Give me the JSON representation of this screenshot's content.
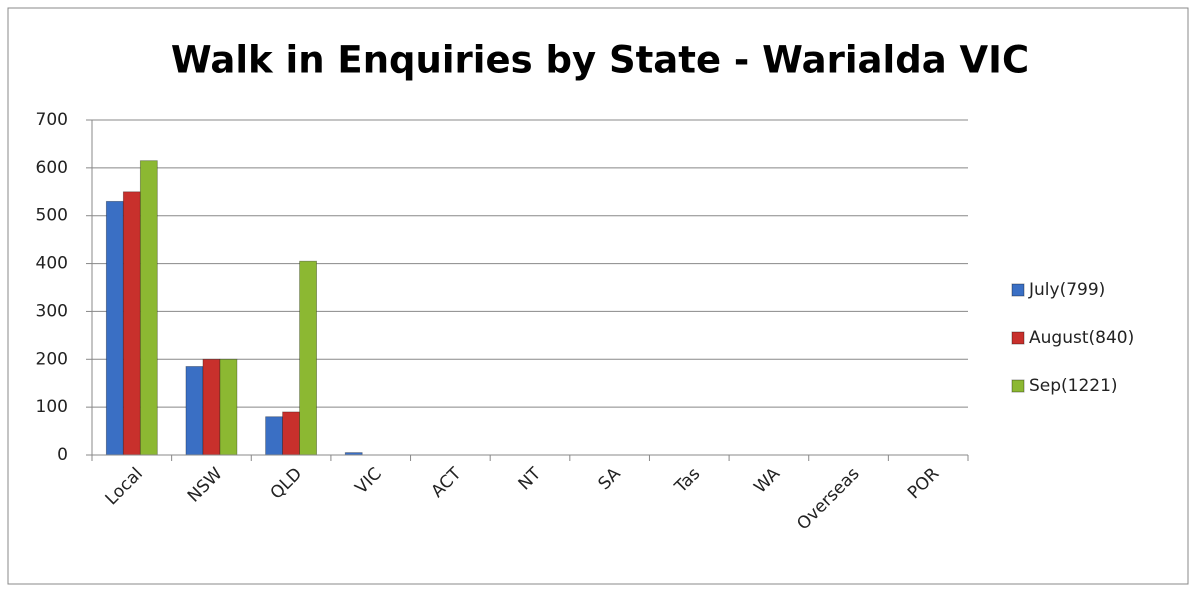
{
  "chart_data": {
    "type": "bar",
    "title": "Walk in Enquiries by State - Warialda VIC",
    "categories": [
      "Local",
      "NSW",
      "QLD",
      "VIC",
      "ACT",
      "NT",
      "SA",
      "Tas",
      "WA",
      "Overseas",
      "POR"
    ],
    "series": [
      {
        "name": "July(799)",
        "color": "#3a6fc4",
        "values": [
          530,
          185,
          80,
          5,
          0,
          0,
          0,
          0,
          0,
          0,
          0
        ]
      },
      {
        "name": "August(840)",
        "color": "#c8302c",
        "values": [
          550,
          200,
          90,
          0,
          0,
          0,
          0,
          0,
          0,
          0,
          0
        ]
      },
      {
        "name": "Sep(1221)",
        "color": "#8cb832",
        "values": [
          615,
          200,
          405,
          0,
          0,
          0,
          0,
          0,
          0,
          0,
          0
        ]
      }
    ],
    "ylim": [
      0,
      700
    ],
    "yticks": [
      0,
      100,
      200,
      300,
      400,
      500,
      600,
      700
    ],
    "grid": true,
    "legend": "right"
  }
}
